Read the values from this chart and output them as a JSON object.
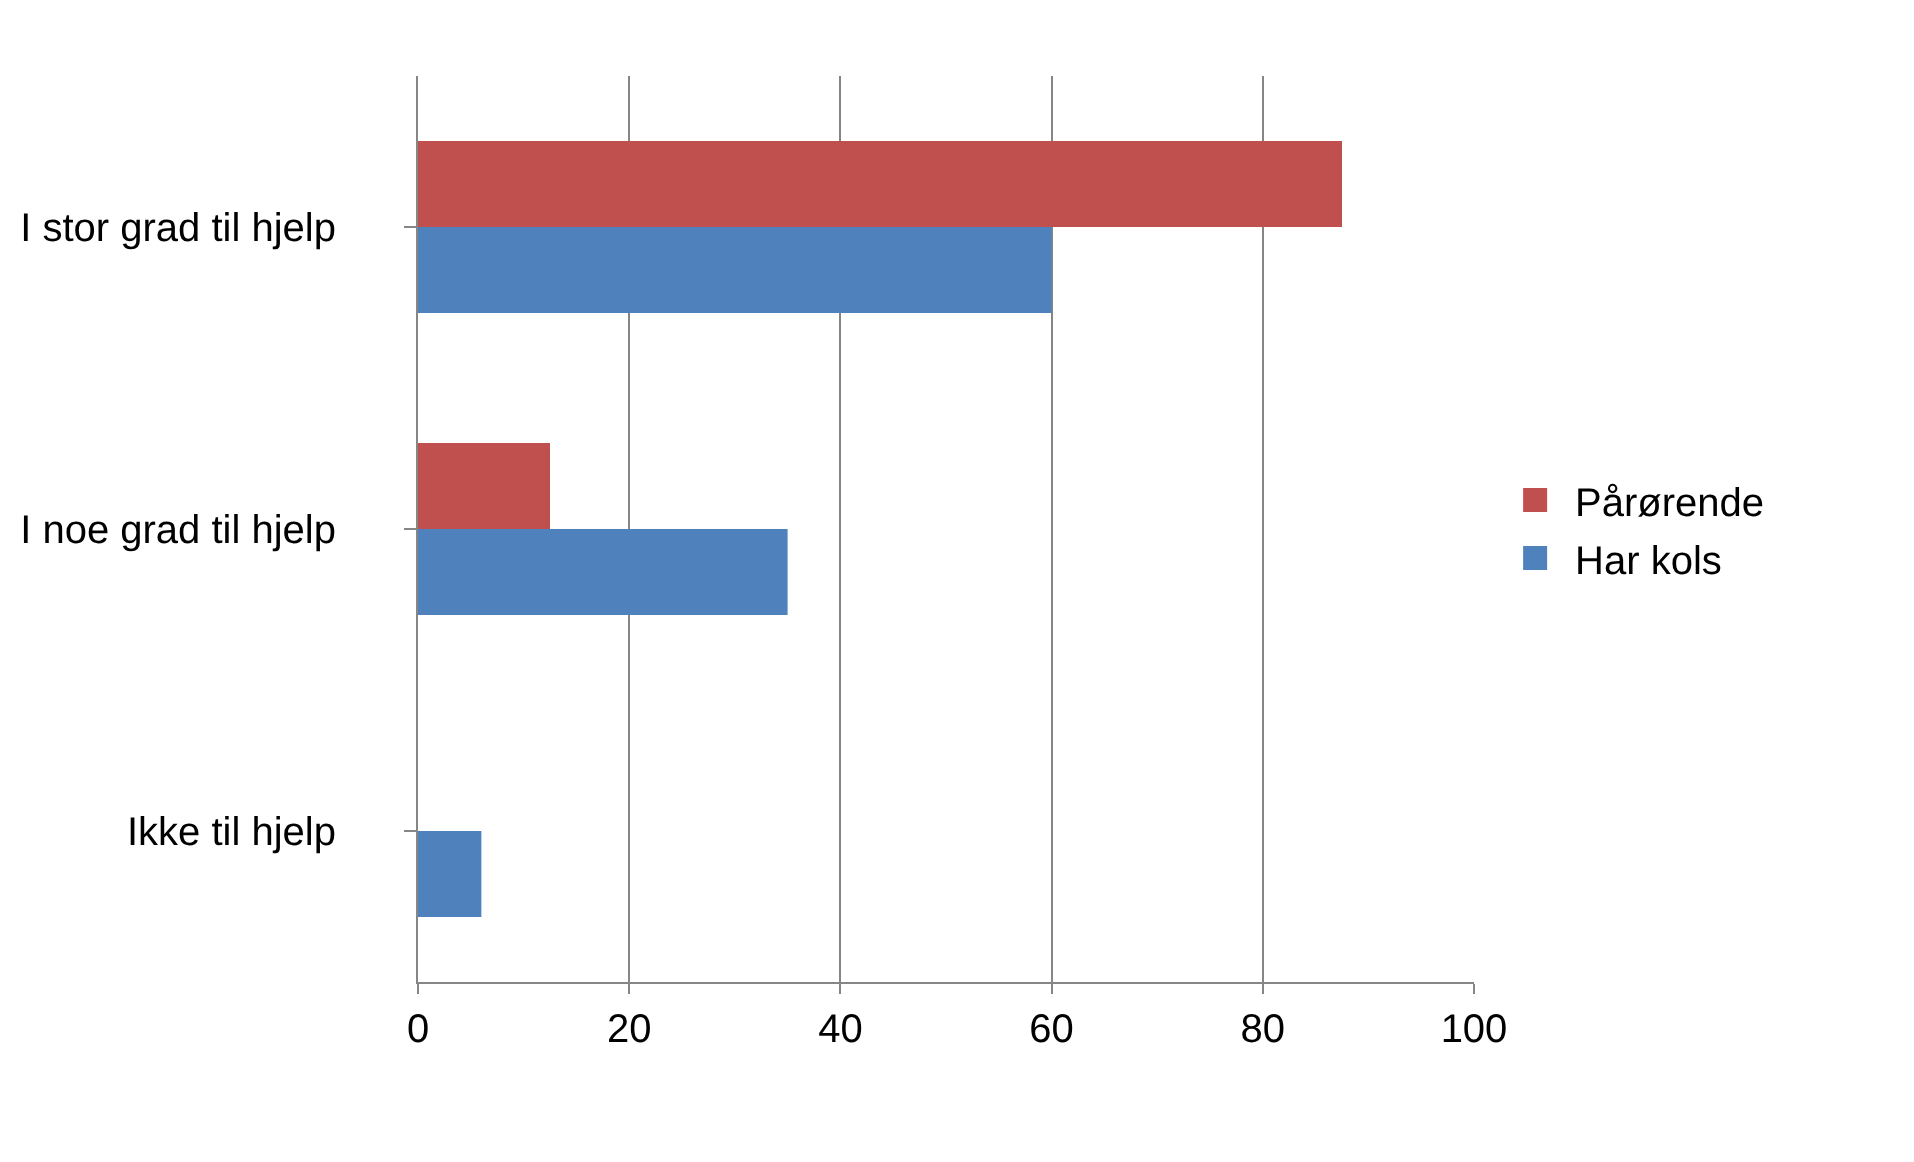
{
  "chart_data": {
    "type": "bar",
    "orientation": "horizontal",
    "categories": [
      "I stor grad til hjelp",
      "I noe grad til hjelp",
      "Ikke til hjelp"
    ],
    "series": [
      {
        "name": "Pårørende",
        "color": "#c0504d",
        "values": [
          87.5,
          12.5,
          0
        ]
      },
      {
        "name": "Har kols",
        "color": "#4f81bd",
        "values": [
          60,
          35,
          6
        ]
      }
    ],
    "xlim": [
      0,
      100
    ],
    "xticks": [
      0,
      20,
      40,
      60,
      80,
      100
    ],
    "grid": "x",
    "legend": "right"
  }
}
